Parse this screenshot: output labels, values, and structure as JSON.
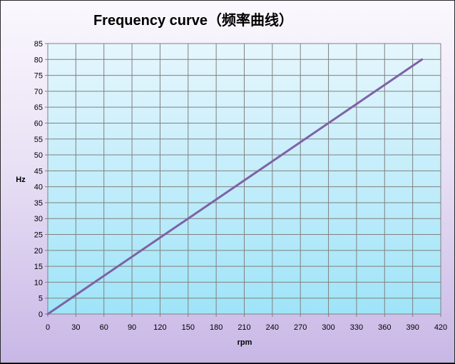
{
  "chart_data": {
    "type": "line",
    "title": "Frequency curve（频率曲线）",
    "xlabel": "rpm",
    "ylabel": "Hz",
    "xlim": [
      0,
      420
    ],
    "ylim": [
      0,
      85
    ],
    "xticks": [
      0,
      30,
      60,
      90,
      120,
      150,
      180,
      210,
      240,
      270,
      300,
      330,
      360,
      390,
      420
    ],
    "yticks": [
      0,
      5,
      10,
      15,
      20,
      25,
      30,
      35,
      40,
      45,
      50,
      55,
      60,
      65,
      70,
      75,
      80,
      85
    ],
    "grid": true,
    "series": [
      {
        "values": [
          0,
          80
        ],
        "x": [
          0,
          400
        ],
        "color": "#7e62a6"
      }
    ],
    "colors": {
      "plot_top": "#e6f6fd",
      "plot_bottom": "#9fe4f8",
      "grid": "#808080",
      "line": "#7e62a6"
    }
  }
}
